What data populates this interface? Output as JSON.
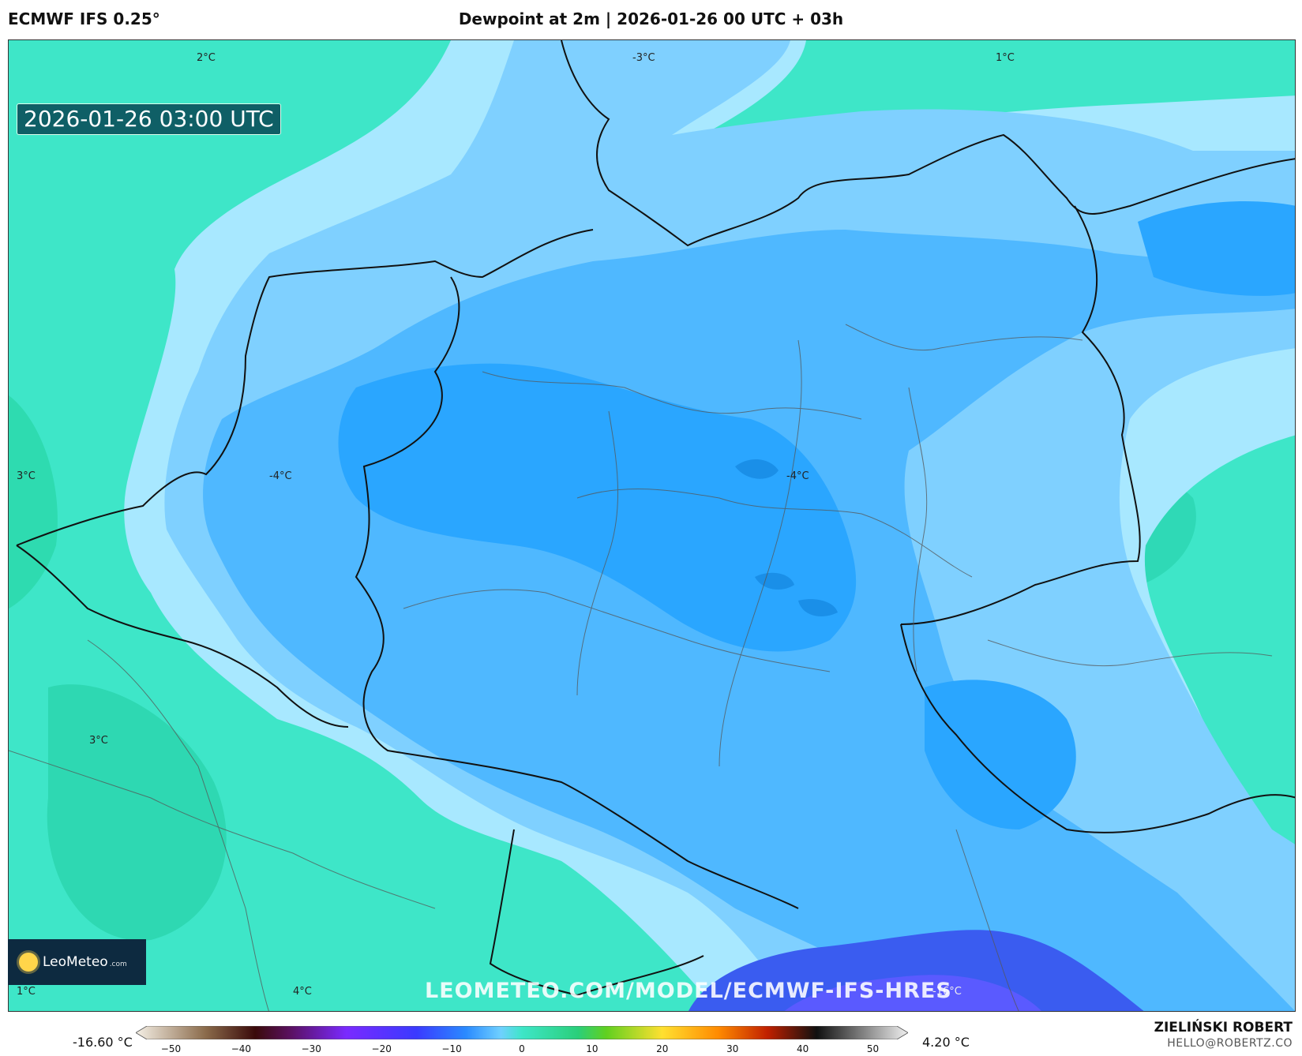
{
  "header": {
    "model": "ECMWF IFS 0.25°",
    "title": "Dewpoint at 2m | 2026-01-26 00 UTC + 03h"
  },
  "map": {
    "timestamp": "2026-01-26 03:00 UTC",
    "contour_labels": [
      {
        "text": "2°C"
      },
      {
        "text": "-3°C"
      },
      {
        "text": "1°C"
      },
      {
        "text": "3°C"
      },
      {
        "text": "-4°C"
      },
      {
        "text": "-4°C"
      },
      {
        "text": "3°C"
      },
      {
        "text": "1°C"
      },
      {
        "text": "4°C"
      },
      {
        "text": "-16°C"
      }
    ],
    "watermark": "LEOMETEO.COM/MODEL/ECMWF-IFS-HRES",
    "logo": {
      "name": "LeoMeteo",
      "suffix": ".com"
    }
  },
  "legend": {
    "min_label": "-16.60 °C",
    "max_label": "4.20 °C",
    "ticks": [
      "−50",
      "−40",
      "−30",
      "−20",
      "−10",
      "0",
      "10",
      "20",
      "30",
      "40",
      "50"
    ],
    "range": [
      -55,
      55
    ],
    "stops": [
      {
        "v": -55,
        "c": "#f5f0e6"
      },
      {
        "v": -45,
        "c": "#8a6a4a"
      },
      {
        "v": -38,
        "c": "#3a0a0a"
      },
      {
        "v": -33,
        "c": "#5a1060"
      },
      {
        "v": -25,
        "c": "#7a2aff"
      },
      {
        "v": -15,
        "c": "#3a3aff"
      },
      {
        "v": -8,
        "c": "#2a8aff"
      },
      {
        "v": -3,
        "c": "#6fd0ff"
      },
      {
        "v": 0,
        "c": "#3ee6c8"
      },
      {
        "v": 8,
        "c": "#2acf7a"
      },
      {
        "v": 12,
        "c": "#60d020"
      },
      {
        "v": 20,
        "c": "#ffe030"
      },
      {
        "v": 28,
        "c": "#ff8a00"
      },
      {
        "v": 35,
        "c": "#c02000"
      },
      {
        "v": 42,
        "c": "#101010"
      },
      {
        "v": 55,
        "c": "#f0f0f0"
      }
    ]
  },
  "credits": {
    "author": "ZIELIŃSKI ROBERT",
    "email": "HELLO@ROBERTZ.CO"
  }
}
